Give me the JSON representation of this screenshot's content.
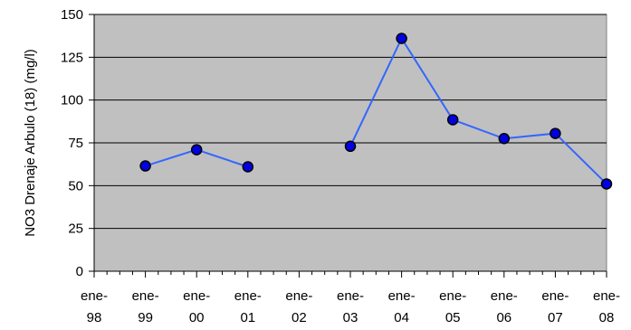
{
  "chart_data": {
    "type": "line",
    "title": "",
    "xlabel": "",
    "ylabel": "NO3 Drenaje Arbulo (18) (mg/l)",
    "categories": [
      [
        "ene-",
        "98"
      ],
      [
        "ene-",
        "99"
      ],
      [
        "ene-",
        "00"
      ],
      [
        "ene-",
        "01"
      ],
      [
        "ene-",
        "02"
      ],
      [
        "ene-",
        "03"
      ],
      [
        "ene-",
        "04"
      ],
      [
        "ene-",
        "05"
      ],
      [
        "ene-",
        "06"
      ],
      [
        "ene-",
        "07"
      ],
      [
        "ene-",
        "08"
      ]
    ],
    "ylim": [
      0,
      150
    ],
    "yticks": [
      "0",
      "25",
      "50",
      "75",
      "100",
      "125",
      "150"
    ],
    "grid": true,
    "legend": "none",
    "colors": {
      "plot_bg": "#c0c0c0",
      "line": "#3366ff",
      "marker": "#0000e0",
      "grid": "#000000"
    },
    "series": [
      {
        "segments": [
          [
            {
              "x": 1.0,
              "y": 61.5
            },
            {
              "x": 2.0,
              "y": 71
            },
            {
              "x": 3.0,
              "y": 61
            }
          ],
          [
            {
              "x": 5.0,
              "y": 73
            },
            {
              "x": 6.0,
              "y": 136
            },
            {
              "x": 7.0,
              "y": 88.5
            },
            {
              "x": 8.0,
              "y": 77.5
            },
            {
              "x": 9.0,
              "y": 80.5
            },
            {
              "x": 10.0,
              "y": 51
            }
          ]
        ]
      }
    ]
  }
}
